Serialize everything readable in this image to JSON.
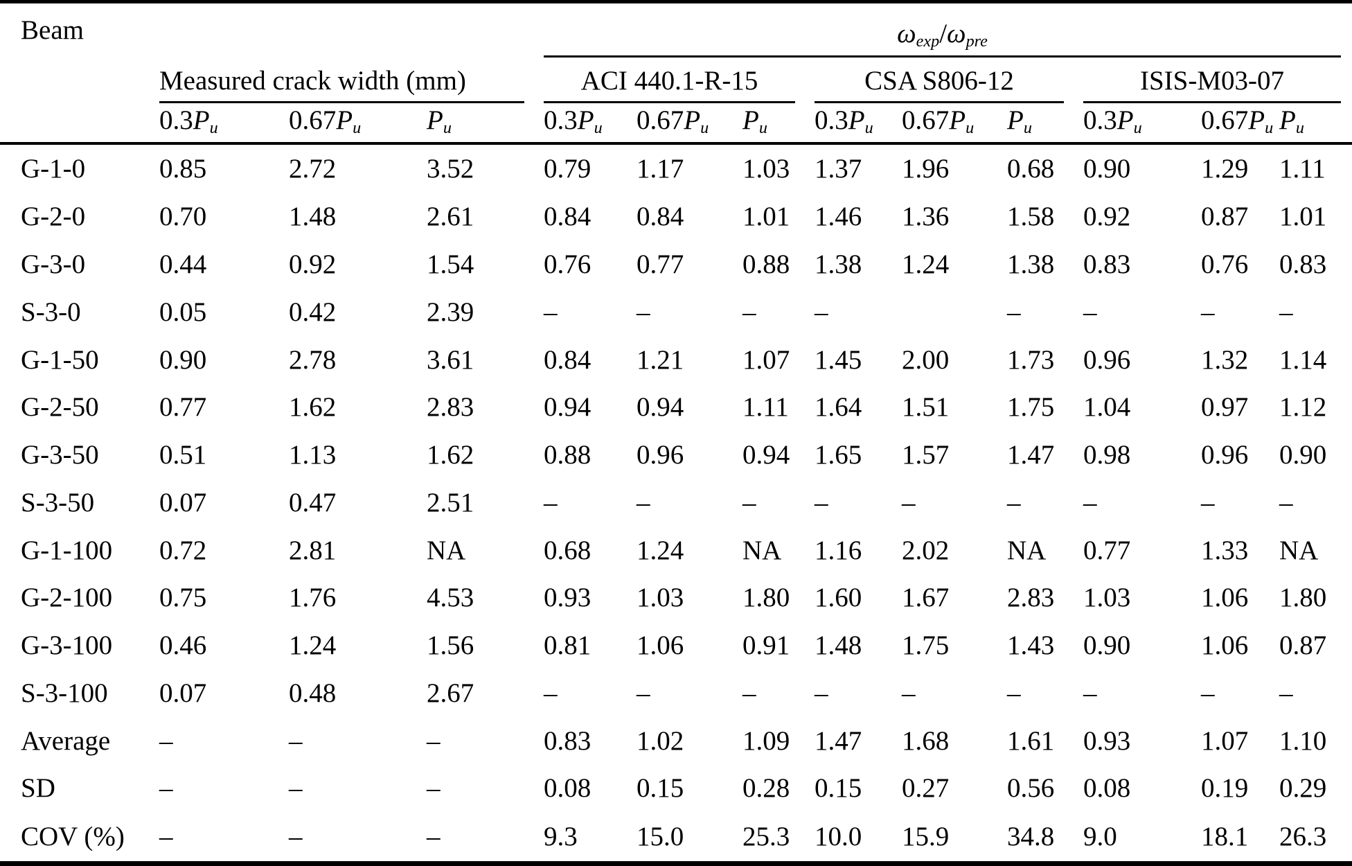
{
  "table": {
    "corner_header": "Beam",
    "ratio_header": {
      "numerator_base": "ω",
      "numerator_sub": "exp",
      "separator": "/",
      "denominator_base": "ω",
      "denominator_sub": "pre"
    },
    "measured_group_label": "Measured crack width (mm)",
    "code_groups": [
      "ACI 440.1-R-15",
      "CSA S806-12",
      "ISIS-M03-07"
    ],
    "load_levels": [
      {
        "coefficient": "0.3",
        "symbol": "P",
        "subscript": "u"
      },
      {
        "coefficient": "0.67",
        "symbol": "P",
        "subscript": "u"
      },
      {
        "coefficient": "",
        "symbol": "P",
        "subscript": "u"
      }
    ],
    "rows": [
      {
        "beam": "G-1-0",
        "values": [
          "0.85",
          "2.72",
          "3.52",
          "0.79",
          "1.17",
          "1.03",
          "1.37",
          "1.96",
          "0.68",
          "0.90",
          "1.29",
          "1.11"
        ]
      },
      {
        "beam": "G-2-0",
        "values": [
          "0.70",
          "1.48",
          "2.61",
          "0.84",
          "0.84",
          "1.01",
          "1.46",
          "1.36",
          "1.58",
          "0.92",
          "0.87",
          "1.01"
        ]
      },
      {
        "beam": "G-3-0",
        "values": [
          "0.44",
          "0.92",
          "1.54",
          "0.76",
          "0.77",
          "0.88",
          "1.38",
          "1.24",
          "1.38",
          "0.83",
          "0.76",
          "0.83"
        ]
      },
      {
        "beam": "S-3-0",
        "values": [
          "0.05",
          "0.42",
          "2.39",
          "–",
          "–",
          "–",
          "–",
          "",
          "–",
          "–",
          "–",
          "–"
        ]
      },
      {
        "beam": "G-1-50",
        "values": [
          "0.90",
          "2.78",
          "3.61",
          "0.84",
          "1.21",
          "1.07",
          "1.45",
          "2.00",
          "1.73",
          "0.96",
          "1.32",
          "1.14"
        ]
      },
      {
        "beam": "G-2-50",
        "values": [
          "0.77",
          "1.62",
          "2.83",
          "0.94",
          "0.94",
          "1.11",
          "1.64",
          "1.51",
          "1.75",
          "1.04",
          "0.97",
          "1.12"
        ]
      },
      {
        "beam": "G-3-50",
        "values": [
          "0.51",
          "1.13",
          "1.62",
          "0.88",
          "0.96",
          "0.94",
          "1.65",
          "1.57",
          "1.47",
          "0.98",
          "0.96",
          "0.90"
        ]
      },
      {
        "beam": "S-3-50",
        "values": [
          "0.07",
          "0.47",
          "2.51",
          "–",
          "–",
          "–",
          "–",
          "–",
          "–",
          "–",
          "–",
          "–"
        ]
      },
      {
        "beam": "G-1-100",
        "values": [
          "0.72",
          "2.81",
          "NA",
          "0.68",
          "1.24",
          "NA",
          "1.16",
          "2.02",
          "NA",
          "0.77",
          "1.33",
          "NA"
        ]
      },
      {
        "beam": "G-2-100",
        "values": [
          "0.75",
          "1.76",
          "4.53",
          "0.93",
          "1.03",
          "1.80",
          "1.60",
          "1.67",
          "2.83",
          "1.03",
          "1.06",
          "1.80"
        ]
      },
      {
        "beam": "G-3-100",
        "values": [
          "0.46",
          "1.24",
          "1.56",
          "0.81",
          "1.06",
          "0.91",
          "1.48",
          "1.75",
          "1.43",
          "0.90",
          "1.06",
          "0.87"
        ]
      },
      {
        "beam": "S-3-100",
        "values": [
          "0.07",
          "0.48",
          "2.67",
          "–",
          "–",
          "–",
          "–",
          "–",
          "–",
          "–",
          "–",
          "–"
        ]
      },
      {
        "beam": "Average",
        "values": [
          "–",
          "–",
          "–",
          "0.83",
          "1.02",
          "1.09",
          "1.47",
          "1.68",
          "1.61",
          "0.93",
          "1.07",
          "1.10"
        ]
      },
      {
        "beam": "SD",
        "values": [
          "–",
          "–",
          "–",
          "0.08",
          "0.15",
          "0.28",
          "0.15",
          "0.27",
          "0.56",
          "0.08",
          "0.19",
          "0.29"
        ]
      },
      {
        "beam": "COV (%)",
        "values": [
          "–",
          "–",
          "–",
          "9.3",
          "15.0",
          "25.3",
          "10.0",
          "15.9",
          "34.8",
          "9.0",
          "18.1",
          "26.3"
        ]
      }
    ]
  }
}
